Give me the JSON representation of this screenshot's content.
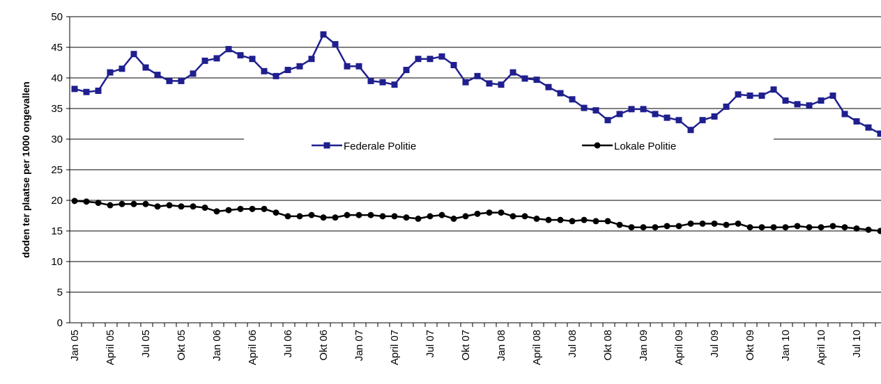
{
  "chart_data": {
    "type": "line",
    "y_label": "doden ter plaatse per 1000 ongevallen",
    "categories": [
      "Jan 05",
      null,
      null,
      "April 05",
      null,
      null,
      "Jul 05",
      null,
      null,
      "Okt 05",
      null,
      null,
      "Jan 06",
      null,
      null,
      "April 06",
      null,
      null,
      "Jul 06",
      null,
      null,
      "Okt 06",
      null,
      null,
      "Jan 07",
      null,
      null,
      "April 07",
      null,
      null,
      "Jul 07",
      null,
      null,
      "Okt 07",
      null,
      null,
      "Jan 08",
      null,
      null,
      "April 08",
      null,
      null,
      "Jul 08",
      null,
      null,
      "Okt 08",
      null,
      null,
      "Jan 09",
      null,
      null,
      "April 09",
      null,
      null,
      "Jul 09",
      null,
      null,
      "Okt 09",
      null,
      null,
      "Jan 10",
      null,
      null,
      "April 10",
      null,
      null,
      "Jul 10",
      null,
      null
    ],
    "series": [
      {
        "name": "Federale Politie",
        "color": "#1f1f8f",
        "marker": "square",
        "values": [
          38.2,
          37.7,
          37.9,
          40.9,
          41.5,
          43.9,
          41.7,
          40.5,
          39.5,
          39.5,
          40.7,
          42.8,
          43.2,
          44.7,
          43.7,
          43.1,
          41.1,
          40.3,
          41.3,
          41.9,
          43.1,
          47.1,
          45.5,
          41.9,
          41.9,
          39.5,
          39.3,
          38.9,
          41.3,
          43.1,
          43.1,
          43.5,
          42.1,
          39.3,
          40.3,
          39.1,
          38.9,
          40.9,
          39.9,
          39.7,
          38.5,
          37.5,
          36.5,
          35.1,
          34.7,
          33.1,
          34.1,
          34.9,
          34.9,
          34.1,
          33.5,
          33.1,
          31.5,
          33.1,
          33.7,
          35.3,
          37.3,
          37.1,
          37.1,
          38.1,
          36.3,
          35.7,
          35.5,
          36.3,
          37.1,
          34.1,
          32.9,
          31.9,
          30.9
        ]
      },
      {
        "name": "Lokale Politie",
        "color": "#000000",
        "marker": "circle",
        "values": [
          19.9,
          19.8,
          19.6,
          19.2,
          19.4,
          19.4,
          19.4,
          19.0,
          19.2,
          19.0,
          19.0,
          18.8,
          18.2,
          18.4,
          18.6,
          18.6,
          18.6,
          18.0,
          17.4,
          17.4,
          17.6,
          17.2,
          17.2,
          17.6,
          17.6,
          17.6,
          17.4,
          17.4,
          17.2,
          17.0,
          17.4,
          17.6,
          17.0,
          17.4,
          17.8,
          18.0,
          18.0,
          17.4,
          17.4,
          17.0,
          16.8,
          16.8,
          16.6,
          16.8,
          16.6,
          16.6,
          16.0,
          15.6,
          15.6,
          15.6,
          15.8,
          15.8,
          16.2,
          16.2,
          16.2,
          16.0,
          16.2,
          15.6,
          15.6,
          15.6,
          15.6,
          15.8,
          15.6,
          15.6,
          15.8,
          15.6,
          15.4,
          15.2,
          15.0
        ]
      }
    ],
    "ylim": [
      0,
      50
    ],
    "yticks": [
      0,
      5,
      10,
      15,
      20,
      25,
      30,
      35,
      40,
      45,
      50
    ],
    "grid": true
  }
}
